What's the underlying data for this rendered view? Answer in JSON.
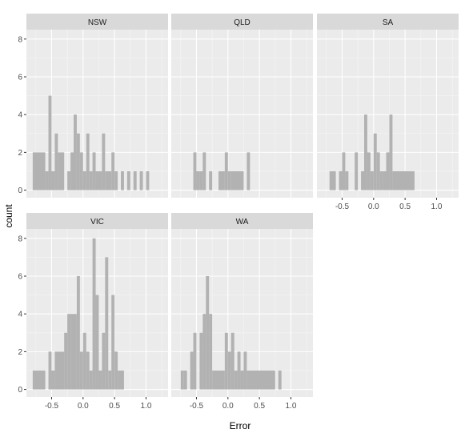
{
  "chart_data": {
    "type": "bar",
    "subtype": "faceted-histogram",
    "xlabel": "Error",
    "ylabel": "count",
    "xlim": [
      -0.9,
      1.35
    ],
    "ylim": [
      -0.4,
      8.5
    ],
    "xticks": [
      -0.5,
      0.0,
      0.5,
      1.0
    ],
    "yticks": [
      0,
      2,
      4,
      6,
      8
    ],
    "bin_width": 0.05,
    "grid": true,
    "colors": {
      "bar": "#b2b2b2",
      "panel_bg": "#ebebeb",
      "strip_bg": "#d9d9d9",
      "grid_major": "#ffffff",
      "grid_minor": "#f5f5f5",
      "tick_text": "#4d4d4d"
    },
    "facets": [
      {
        "name": "NSW",
        "bins": [
          {
            "x0": -0.8,
            "x1": -0.6,
            "count": 2
          },
          {
            "x0": -0.6,
            "x1": -0.55,
            "count": 1
          },
          {
            "x0": -0.55,
            "x1": -0.5,
            "count": 5
          },
          {
            "x0": -0.5,
            "x1": -0.45,
            "count": 1
          },
          {
            "x0": -0.45,
            "x1": -0.4,
            "count": 3
          },
          {
            "x0": -0.4,
            "x1": -0.3,
            "count": 2
          },
          {
            "x0": -0.25,
            "x1": -0.2,
            "count": 1
          },
          {
            "x0": -0.2,
            "x1": -0.15,
            "count": 2
          },
          {
            "x0": -0.15,
            "x1": -0.1,
            "count": 4
          },
          {
            "x0": -0.1,
            "x1": -0.05,
            "count": 3
          },
          {
            "x0": -0.05,
            "x1": 0.0,
            "count": 2
          },
          {
            "x0": 0.0,
            "x1": 0.05,
            "count": 1
          },
          {
            "x0": 0.05,
            "x1": 0.1,
            "count": 3
          },
          {
            "x0": 0.1,
            "x1": 0.15,
            "count": 1
          },
          {
            "x0": 0.15,
            "x1": 0.2,
            "count": 2
          },
          {
            "x0": 0.2,
            "x1": 0.3,
            "count": 1
          },
          {
            "x0": 0.3,
            "x1": 0.35,
            "count": 3
          },
          {
            "x0": 0.35,
            "x1": 0.45,
            "count": 1
          },
          {
            "x0": 0.45,
            "x1": 0.5,
            "count": 2
          },
          {
            "x0": 0.5,
            "x1": 0.55,
            "count": 1
          },
          {
            "x0": 0.6,
            "x1": 0.65,
            "count": 1
          },
          {
            "x0": 0.7,
            "x1": 0.75,
            "count": 1
          },
          {
            "x0": 0.8,
            "x1": 0.85,
            "count": 1
          },
          {
            "x0": 0.9,
            "x1": 0.95,
            "count": 1
          },
          {
            "x0": 1.0,
            "x1": 1.05,
            "count": 1
          }
        ]
      },
      {
        "name": "QLD",
        "bins": [
          {
            "x0": -0.55,
            "x1": -0.5,
            "count": 2
          },
          {
            "x0": -0.5,
            "x1": -0.45,
            "count": 1
          },
          {
            "x0": -0.45,
            "x1": -0.4,
            "count": 1
          },
          {
            "x0": -0.4,
            "x1": -0.35,
            "count": 2
          },
          {
            "x0": -0.3,
            "x1": -0.25,
            "count": 1
          },
          {
            "x0": -0.15,
            "x1": -0.05,
            "count": 1
          },
          {
            "x0": -0.05,
            "x1": 0.0,
            "count": 2
          },
          {
            "x0": 0.0,
            "x1": 0.05,
            "count": 1
          },
          {
            "x0": 0.05,
            "x1": 0.25,
            "count": 1
          },
          {
            "x0": 0.3,
            "x1": 0.35,
            "count": 2
          }
        ]
      },
      {
        "name": "SA",
        "bins": [
          {
            "x0": -0.7,
            "x1": -0.6,
            "count": 1
          },
          {
            "x0": -0.55,
            "x1": -0.5,
            "count": 1
          },
          {
            "x0": -0.5,
            "x1": -0.45,
            "count": 2
          },
          {
            "x0": -0.45,
            "x1": -0.4,
            "count": 1
          },
          {
            "x0": -0.3,
            "x1": -0.25,
            "count": 2
          },
          {
            "x0": -0.2,
            "x1": -0.15,
            "count": 1
          },
          {
            "x0": -0.15,
            "x1": -0.1,
            "count": 4
          },
          {
            "x0": -0.1,
            "x1": -0.05,
            "count": 2
          },
          {
            "x0": -0.05,
            "x1": 0.0,
            "count": 1
          },
          {
            "x0": 0.0,
            "x1": 0.05,
            "count": 3
          },
          {
            "x0": 0.05,
            "x1": 0.1,
            "count": 2
          },
          {
            "x0": 0.1,
            "x1": 0.15,
            "count": 1
          },
          {
            "x0": 0.15,
            "x1": 0.2,
            "count": 1
          },
          {
            "x0": 0.2,
            "x1": 0.25,
            "count": 2
          },
          {
            "x0": 0.25,
            "x1": 0.3,
            "count": 4
          },
          {
            "x0": 0.3,
            "x1": 0.65,
            "count": 1
          }
        ]
      },
      {
        "name": "VIC",
        "bins": [
          {
            "x0": -0.8,
            "x1": -0.6,
            "count": 1
          },
          {
            "x0": -0.55,
            "x1": -0.5,
            "count": 2
          },
          {
            "x0": -0.5,
            "x1": -0.45,
            "count": 1
          },
          {
            "x0": -0.45,
            "x1": -0.3,
            "count": 2
          },
          {
            "x0": -0.3,
            "x1": -0.25,
            "count": 3
          },
          {
            "x0": -0.25,
            "x1": -0.2,
            "count": 4
          },
          {
            "x0": -0.2,
            "x1": -0.1,
            "count": 4
          },
          {
            "x0": -0.1,
            "x1": -0.05,
            "count": 6
          },
          {
            "x0": -0.05,
            "x1": 0.0,
            "count": 2
          },
          {
            "x0": 0.0,
            "x1": 0.05,
            "count": 3
          },
          {
            "x0": 0.05,
            "x1": 0.1,
            "count": 2
          },
          {
            "x0": 0.1,
            "x1": 0.15,
            "count": 1
          },
          {
            "x0": 0.15,
            "x1": 0.2,
            "count": 8
          },
          {
            "x0": 0.2,
            "x1": 0.25,
            "count": 5
          },
          {
            "x0": 0.25,
            "x1": 0.3,
            "count": 1
          },
          {
            "x0": 0.3,
            "x1": 0.35,
            "count": 3
          },
          {
            "x0": 0.35,
            "x1": 0.4,
            "count": 7
          },
          {
            "x0": 0.4,
            "x1": 0.45,
            "count": 1
          },
          {
            "x0": 0.45,
            "x1": 0.5,
            "count": 5
          },
          {
            "x0": 0.5,
            "x1": 0.55,
            "count": 2
          },
          {
            "x0": 0.55,
            "x1": 0.65,
            "count": 1
          }
        ]
      },
      {
        "name": "WA",
        "bins": [
          {
            "x0": -0.75,
            "x1": -0.7,
            "count": 1
          },
          {
            "x0": -0.7,
            "x1": -0.65,
            "count": 1
          },
          {
            "x0": -0.6,
            "x1": -0.55,
            "count": 2
          },
          {
            "x0": -0.55,
            "x1": -0.5,
            "count": 3
          },
          {
            "x0": -0.45,
            "x1": -0.4,
            "count": 3
          },
          {
            "x0": -0.4,
            "x1": -0.35,
            "count": 4
          },
          {
            "x0": -0.35,
            "x1": -0.3,
            "count": 6
          },
          {
            "x0": -0.3,
            "x1": -0.25,
            "count": 4
          },
          {
            "x0": -0.25,
            "x1": -0.05,
            "count": 1
          },
          {
            "x0": -0.05,
            "x1": 0.0,
            "count": 3
          },
          {
            "x0": 0.0,
            "x1": 0.05,
            "count": 2
          },
          {
            "x0": 0.05,
            "x1": 0.1,
            "count": 3
          },
          {
            "x0": 0.1,
            "x1": 0.15,
            "count": 1
          },
          {
            "x0": 0.15,
            "x1": 0.2,
            "count": 2
          },
          {
            "x0": 0.2,
            "x1": 0.25,
            "count": 1
          },
          {
            "x0": 0.25,
            "x1": 0.3,
            "count": 2
          },
          {
            "x0": 0.3,
            "x1": 0.75,
            "count": 1
          },
          {
            "x0": 0.8,
            "x1": 0.85,
            "count": 1
          }
        ]
      }
    ]
  }
}
